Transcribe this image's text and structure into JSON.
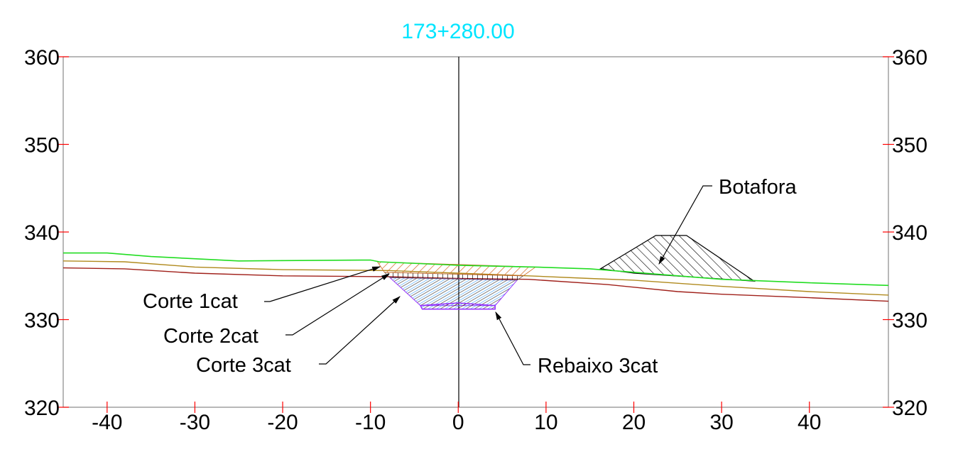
{
  "station_label": "173+280.00",
  "axes": {
    "y_ticks": [
      360,
      350,
      340,
      330,
      320
    ],
    "x_ticks": [
      -40,
      -30,
      -20,
      -10,
      0,
      10,
      20,
      30,
      40
    ],
    "x_range": [
      -45,
      49
    ],
    "y_range": [
      320,
      360
    ]
  },
  "labels": {
    "botafora": "Botafora",
    "corte1": "Corte 1cat",
    "corte2": "Corte 2cat",
    "corte3": "Corte 3cat",
    "rebaixo": "Rebaixo 3cat"
  },
  "colors": {
    "terrain": "#22dd22",
    "layer2": "#b08a1e",
    "layer3": "#a0201a",
    "station": "#00e5ff",
    "tick": "#ff0000",
    "hatch1": "#d2691e",
    "hatch3": "#1e90ff",
    "rebaixo": "#9933ff"
  },
  "profiles": {
    "terrain": [
      [
        -45,
        337.6
      ],
      [
        -40,
        337.6
      ],
      [
        -35,
        337.2
      ],
      [
        -25,
        336.7
      ],
      [
        -10,
        336.8
      ],
      [
        -9,
        336.6
      ],
      [
        0,
        336.2
      ],
      [
        8.8,
        336.0
      ],
      [
        15,
        335.8
      ],
      [
        20,
        335.4
      ],
      [
        30,
        334.6
      ],
      [
        40,
        334.2
      ],
      [
        49,
        333.9
      ]
    ],
    "layer2": [
      [
        -45,
        336.7
      ],
      [
        -38,
        336.6
      ],
      [
        -30,
        336.0
      ],
      [
        -20,
        335.7
      ],
      [
        -8,
        335.6
      ],
      [
        0,
        335.3
      ],
      [
        8,
        335.0
      ],
      [
        15,
        334.7
      ],
      [
        20,
        334.5
      ],
      [
        30,
        333.8
      ],
      [
        40,
        333.2
      ],
      [
        49,
        332.8
      ]
    ],
    "layer3": [
      [
        -45,
        335.9
      ],
      [
        -38,
        335.8
      ],
      [
        -30,
        335.3
      ],
      [
        -20,
        335.0
      ],
      [
        -8,
        334.9
      ],
      [
        0,
        334.7
      ],
      [
        8,
        334.6
      ],
      [
        17,
        334.0
      ],
      [
        25,
        333.2
      ],
      [
        30,
        332.9
      ],
      [
        40,
        332.5
      ],
      [
        49,
        332.1
      ]
    ]
  },
  "cut": {
    "corte1": [
      [
        -9.2,
        336.6
      ],
      [
        8.8,
        336.0
      ],
      [
        7.4,
        335.0
      ],
      [
        -8.4,
        335.4
      ]
    ],
    "corte2": [
      [
        -8.4,
        335.4
      ],
      [
        7.4,
        335.0
      ],
      [
        6.7,
        334.5
      ],
      [
        -7.8,
        334.8
      ]
    ],
    "corte3": [
      [
        -7.8,
        334.8
      ],
      [
        6.7,
        334.5
      ],
      [
        4.2,
        331.6
      ],
      [
        -4.3,
        331.6
      ]
    ],
    "rebaixo": [
      [
        -4.3,
        331.6
      ],
      [
        0,
        331.9
      ],
      [
        4.2,
        331.6
      ],
      [
        4.2,
        331.2
      ],
      [
        -4.1,
        331.2
      ]
    ]
  },
  "botafora": [
    [
      16.2,
      335.8
    ],
    [
      22.5,
      339.6
    ],
    [
      26,
      339.6
    ],
    [
      33.7,
      334.4
    ],
    [
      20,
      335.3
    ]
  ]
}
